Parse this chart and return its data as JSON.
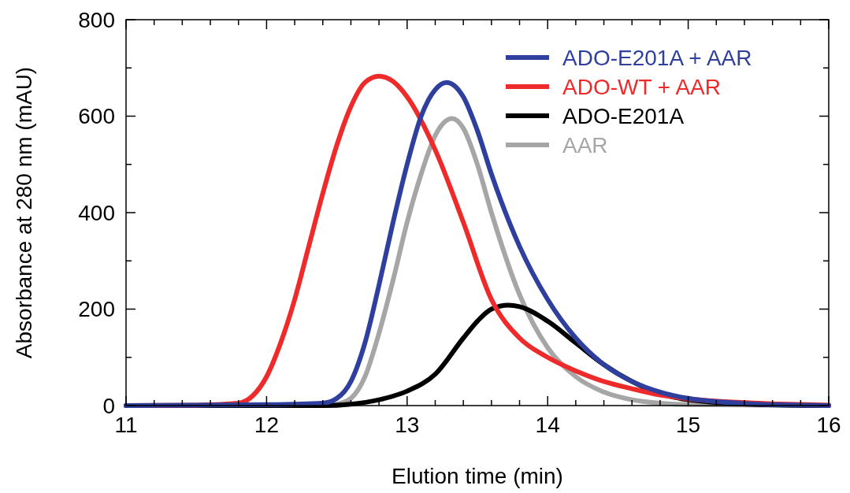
{
  "chart_data": {
    "type": "line",
    "xlabel": "Elution time (min)",
    "ylabel": "Absorbance at 280 nm (mAU)",
    "xlim": [
      11,
      16
    ],
    "ylim": [
      0,
      800
    ],
    "xticks": [
      11,
      {
        "value": 11.2,
        "label": null
      },
      {
        "value": 11.4,
        "label": null
      },
      {
        "value": 11.6,
        "label": null
      },
      {
        "value": 11.8,
        "label": null
      },
      12,
      {
        "value": 12.2,
        "label": null
      },
      {
        "value": 12.4,
        "label": null
      },
      {
        "value": 12.6,
        "label": null
      },
      {
        "value": 12.8,
        "label": null
      },
      13,
      {
        "value": 13.2,
        "label": null
      },
      {
        "value": 13.4,
        "label": null
      },
      {
        "value": 13.6,
        "label": null
      },
      {
        "value": 13.8,
        "label": null
      },
      14,
      {
        "value": 14.2,
        "label": null
      },
      {
        "value": 14.4,
        "label": null
      },
      {
        "value": 14.6,
        "label": null
      },
      {
        "value": 14.8,
        "label": null
      },
      15,
      {
        "value": 15.2,
        "label": null
      },
      {
        "value": 15.4,
        "label": null
      },
      {
        "value": 15.6,
        "label": null
      },
      {
        "value": 15.8,
        "label": null
      },
      16
    ],
    "yticks": [
      0,
      {
        "value": 100,
        "label": null
      },
      200,
      {
        "value": 300,
        "label": null
      },
      400,
      {
        "value": 500,
        "label": null
      },
      600,
      {
        "value": 700,
        "label": null
      },
      800
    ],
    "grid": false,
    "legend": "top right",
    "marker": "none",
    "line_style": "solid",
    "series": [
      {
        "name": "ADO-E201A + AAR",
        "color": "#2e3f9e",
        "x": [
          11,
          12,
          12.4,
          12.5,
          12.6,
          12.7,
          12.8,
          12.9,
          13,
          13.1,
          13.2,
          13.28,
          13.4,
          13.5,
          13.6,
          13.8,
          14,
          14.2,
          14.4,
          14.6,
          14.8,
          15,
          15.5,
          16
        ],
        "values": [
          0,
          2,
          5,
          15,
          50,
          130,
          250,
          380,
          500,
          600,
          655,
          670,
          640,
          570,
          480,
          330,
          220,
          140,
          85,
          50,
          28,
          15,
          3,
          0
        ]
      },
      {
        "name": "ADO-WT + AAR",
        "color": "#ee2a2a",
        "x": [
          11,
          11.5,
          11.8,
          11.9,
          12,
          12.1,
          12.2,
          12.3,
          12.4,
          12.5,
          12.6,
          12.7,
          12.8,
          12.9,
          13,
          13.2,
          13.4,
          13.6,
          13.8,
          14,
          14.2,
          14.4,
          14.6,
          14.8,
          15,
          15.5,
          16
        ],
        "values": [
          0,
          1,
          5,
          20,
          60,
          130,
          220,
          330,
          440,
          540,
          620,
          670,
          683,
          672,
          640,
          530,
          380,
          220,
          140,
          100,
          72,
          50,
          35,
          22,
          14,
          5,
          1
        ]
      },
      {
        "name": "ADO-E201A",
        "color": "#000000",
        "x": [
          11,
          12.4,
          12.6,
          12.8,
          13,
          13.2,
          13.4,
          13.5,
          13.6,
          13.72,
          13.8,
          14,
          14.2,
          14.4,
          14.6,
          14.8,
          15,
          15.5,
          16
        ],
        "values": [
          0,
          0,
          3,
          12,
          30,
          65,
          140,
          175,
          200,
          208,
          205,
          175,
          130,
          85,
          50,
          25,
          12,
          2,
          0
        ]
      },
      {
        "name": "AAR",
        "color": "#a6a6a6",
        "x": [
          11,
          12.4,
          12.5,
          12.6,
          12.7,
          12.8,
          12.9,
          13,
          13.1,
          13.2,
          13.32,
          13.4,
          13.5,
          13.6,
          13.8,
          14,
          14.2,
          14.4,
          14.6,
          14.8,
          15,
          16
        ],
        "values": [
          0,
          0,
          3,
          15,
          60,
          150,
          260,
          380,
          480,
          560,
          595,
          575,
          500,
          400,
          230,
          120,
          60,
          28,
          12,
          5,
          2,
          0
        ]
      }
    ]
  }
}
